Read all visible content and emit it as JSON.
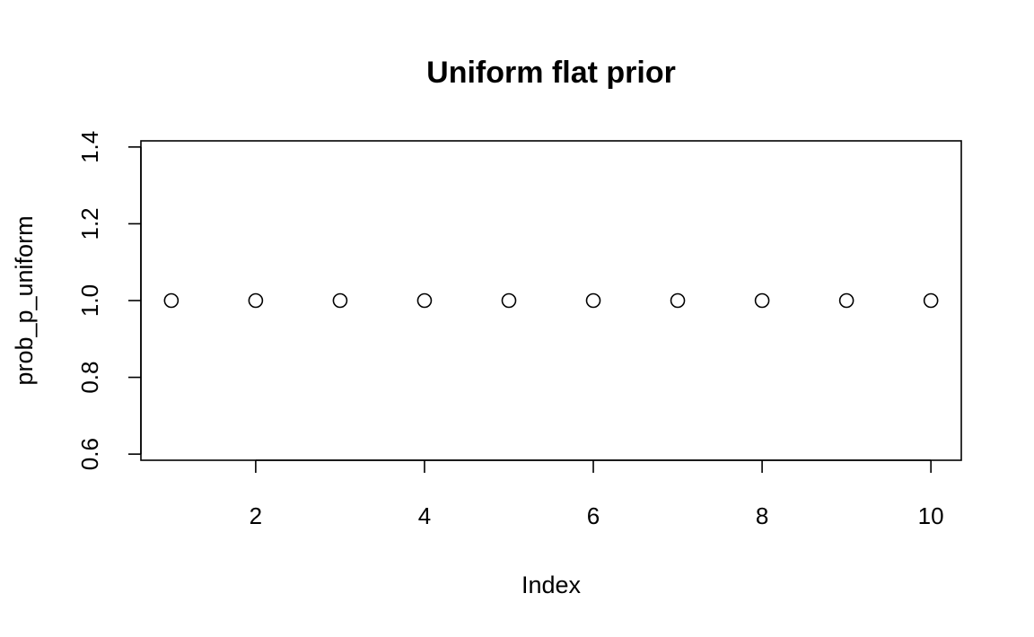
{
  "chart_data": {
    "type": "scatter",
    "title": "Uniform flat prior",
    "xlabel": "Index",
    "ylabel": "prob_p_uniform",
    "x": [
      1,
      2,
      3,
      4,
      5,
      6,
      7,
      8,
      9,
      10
    ],
    "y": [
      1,
      1,
      1,
      1,
      1,
      1,
      1,
      1,
      1,
      1
    ],
    "xlim": [
      0.64,
      10.36
    ],
    "ylim": [
      0.584,
      1.416
    ],
    "x_ticks": [
      2,
      4,
      6,
      8,
      10
    ],
    "x_tick_labels": [
      "2",
      "4",
      "6",
      "8",
      "10"
    ],
    "y_ticks": [
      0.6,
      0.8,
      1.0,
      1.2,
      1.4
    ],
    "y_tick_labels": [
      "0.6",
      "0.8",
      "1.0",
      "1.2",
      "1.4"
    ],
    "grid": false,
    "legend": "none",
    "marker": "open-circle",
    "color": "#000000"
  }
}
